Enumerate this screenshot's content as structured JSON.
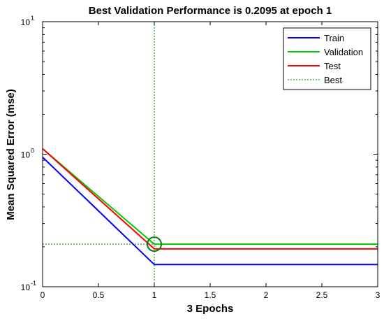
{
  "chart_data": {
    "type": "line",
    "title": "Best Validation Performance is 0.2095 at epoch 1",
    "xlabel": "3 Epochs",
    "ylabel": "Mean Squared Error  (mse)",
    "xlim": [
      0,
      3
    ],
    "ylim": [
      0.1,
      10
    ],
    "yscale": "log",
    "x_ticks": [
      "0",
      "0.5",
      "1",
      "1.5",
      "2",
      "2.5",
      "3"
    ],
    "y_ticks": [
      {
        "base": "10",
        "exp": "1",
        "value": 10
      },
      {
        "base": "10",
        "exp": "0",
        "value": 1
      },
      {
        "base": "10",
        "exp": "-1",
        "value": 0.1
      }
    ],
    "grid": false,
    "legend_position": "top-right",
    "x": [
      0,
      1,
      2,
      3
    ],
    "series": [
      {
        "name": "Train",
        "color": "#0000ff",
        "style": "solid",
        "values": [
          0.95,
          0.147,
          0.147,
          0.147
        ]
      },
      {
        "name": "Validation",
        "color": "#00cc00",
        "style": "solid",
        "values": [
          1.1,
          0.2095,
          0.2095,
          0.2095
        ]
      },
      {
        "name": "Test",
        "color": "#ff0000",
        "style": "solid",
        "values": [
          1.1,
          0.193,
          0.193,
          0.193
        ]
      }
    ],
    "best": {
      "name": "Best",
      "epoch": 1,
      "value": 0.2095,
      "color": "#008000",
      "style": "dotted"
    }
  }
}
